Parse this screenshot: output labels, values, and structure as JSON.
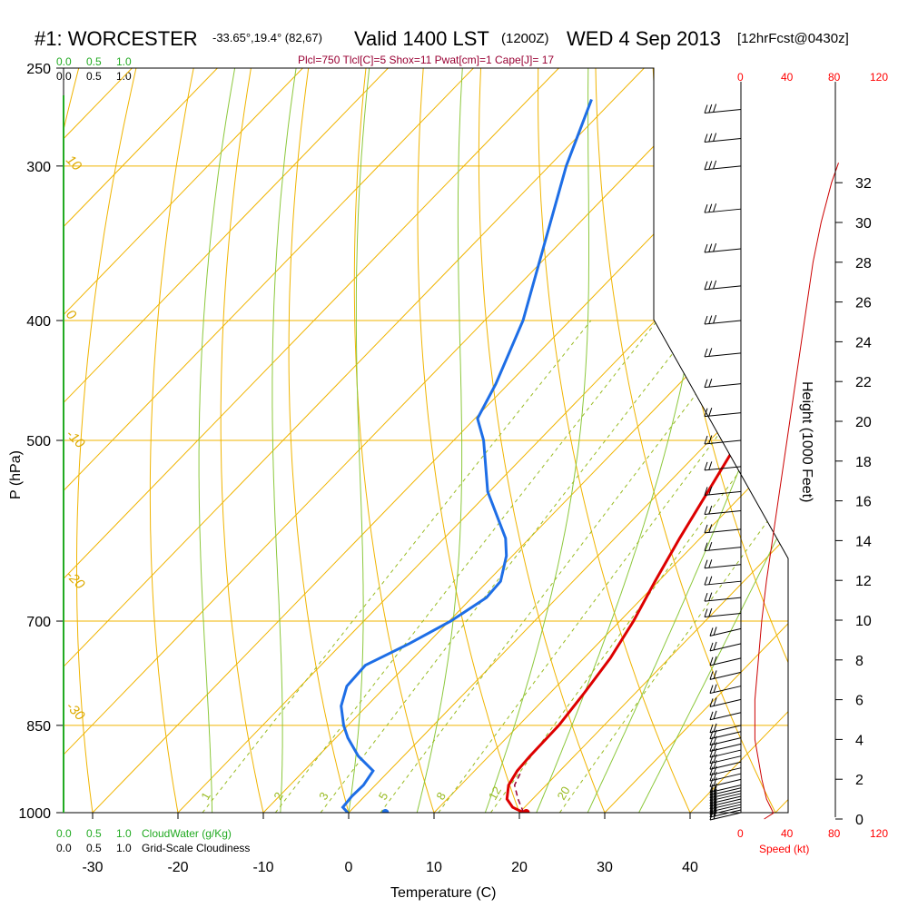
{
  "header": {
    "station": "#1: WORCESTER",
    "coords": "-33.65°,19.4° (82,67)",
    "valid": "Valid 1400 LST",
    "zulu": "(1200Z)",
    "date": "WED 4 Sep 2013",
    "forecast": "[12hrFcst@0430z]"
  },
  "indices": "Plcl=750 Tlcl[C]=5 Shox=11 Pwat[cm]=1 Cape[J]= 17",
  "colors": {
    "isotherm": "#f0b400",
    "dry_adiabat": "#f0b400",
    "moist_adiabat": "#8cc83c",
    "mixing_ratio": "#99bb22",
    "temperature": "#dd0000",
    "dewpoint": "#1e6ee6",
    "parcel": "#990033",
    "cloud": "#22aa22",
    "wind_speed": "#cc0000"
  },
  "chart_data": {
    "type": "line",
    "title": "Skew-T log-P sounding",
    "xlabel": "Temperature (C)",
    "ylabel": "P (hPa)",
    "y2label": "Height (1000 Feet)",
    "xlim": [
      -35,
      45
    ],
    "ylim_hpa": [
      1000,
      250
    ],
    "temperature_ticks": [
      "-30",
      "-20",
      "-10",
      "0",
      "10",
      "20",
      "30",
      "40"
    ],
    "pressure_levels": [
      250,
      300,
      400,
      500,
      700,
      850,
      1000
    ],
    "pressure_labels": [
      "250",
      "300",
      "400",
      "500",
      "700",
      "850",
      "1000"
    ],
    "height_labels": [
      "0",
      "2",
      "4",
      "6",
      "8",
      "10",
      "12",
      "14",
      "16",
      "18",
      "20",
      "22",
      "24",
      "26",
      "28",
      "30",
      "32"
    ],
    "isotherm_labels": [
      "10",
      "0",
      "-10",
      "-20",
      "-30"
    ],
    "dry_adiabat_labels": [
      "0",
      "10",
      "20",
      "30"
    ],
    "mixing_ratio_labels": [
      "1",
      "2",
      "3",
      "5",
      "8",
      "12",
      "20"
    ],
    "series": [
      {
        "name": "temperature",
        "points": [
          [
            1000,
            20.5
          ],
          [
            990,
            18.6
          ],
          [
            975,
            17.0
          ],
          [
            950,
            15.6
          ],
          [
            925,
            15.0
          ],
          [
            900,
            14.8
          ],
          [
            850,
            14.7
          ],
          [
            800,
            14.0
          ],
          [
            750,
            13.1
          ],
          [
            700,
            11.6
          ],
          [
            650,
            9.6
          ],
          [
            600,
            7.6
          ],
          [
            550,
            5.6
          ],
          [
            500,
            3.4
          ],
          [
            450,
            -0.3
          ],
          [
            400,
            -4.3
          ],
          [
            350,
            -8.8
          ],
          [
            320,
            -12.9
          ],
          [
            300,
            -15.6
          ],
          [
            280,
            -18.6
          ],
          [
            265,
            -20.1
          ]
        ]
      },
      {
        "name": "dewpoint",
        "points": [
          [
            1000,
            -0.1
          ],
          [
            990,
            -1.3
          ],
          [
            970,
            -1.5
          ],
          [
            950,
            -1.4
          ],
          [
            925,
            -1.9
          ],
          [
            900,
            -5.3
          ],
          [
            870,
            -8.6
          ],
          [
            850,
            -10.5
          ],
          [
            820,
            -13.0
          ],
          [
            790,
            -14.6
          ],
          [
            760,
            -14.8
          ],
          [
            730,
            -12.1
          ],
          [
            700,
            -9.8
          ],
          [
            670,
            -8.3
          ],
          [
            650,
            -8.5
          ],
          [
            620,
            -10.7
          ],
          [
            600,
            -12.8
          ],
          [
            550,
            -20.2
          ],
          [
            500,
            -26.5
          ],
          [
            480,
            -29.7
          ],
          [
            450,
            -31.5
          ],
          [
            400,
            -35.5
          ],
          [
            350,
            -41.3
          ],
          [
            300,
            -48.0
          ],
          [
            265,
            -52.6
          ]
        ]
      },
      {
        "name": "parcel",
        "points": [
          [
            1000,
            20.5
          ],
          [
            975,
            18.3
          ],
          [
            950,
            16.3
          ],
          [
            925,
            15.5
          ]
        ]
      }
    ],
    "surface": {
      "temperature": 20.8,
      "dewpoint": 4.3
    },
    "cloud_water": {
      "label": "CloudWater (g/Kg)",
      "ticks": [
        "0.0",
        "0.5",
        "1.0"
      ]
    },
    "cloudiness": {
      "label": "Grid-Scale Cloudiness",
      "ticks": [
        "0.0",
        "0.5",
        "1.0"
      ]
    },
    "wind_speed": {
      "label": "Speed (kt)",
      "ticks": [
        "0",
        "40",
        "80",
        "120"
      ],
      "profile": [
        [
          0.0,
          20
        ],
        [
          0.3,
          28
        ],
        [
          1.0,
          22
        ],
        [
          2.0,
          18
        ],
        [
          3.0,
          15
        ],
        [
          4.0,
          12
        ],
        [
          6.0,
          12
        ],
        [
          8.0,
          15
        ],
        [
          10.0,
          18
        ],
        [
          12.0,
          22
        ],
        [
          14.0,
          27
        ],
        [
          16.0,
          32
        ],
        [
          18.0,
          37
        ],
        [
          20.0,
          42
        ],
        [
          22.0,
          47
        ],
        [
          24.0,
          52
        ],
        [
          26.0,
          57
        ],
        [
          28.0,
          62
        ],
        [
          30.0,
          69
        ],
        [
          32.0,
          78
        ],
        [
          33.0,
          84
        ]
      ]
    },
    "wind_barbs": {
      "levels_hpa": [
        1000,
        995,
        990,
        985,
        980,
        975,
        970,
        965,
        960,
        955,
        950,
        940,
        930,
        920,
        910,
        900,
        890,
        880,
        870,
        860,
        850,
        830,
        810,
        790,
        770,
        750,
        730,
        710,
        690,
        670,
        650,
        630,
        610,
        590,
        570,
        550,
        525,
        500,
        475,
        450,
        425,
        400,
        375,
        350,
        325,
        300,
        285,
        270
      ]
    }
  }
}
